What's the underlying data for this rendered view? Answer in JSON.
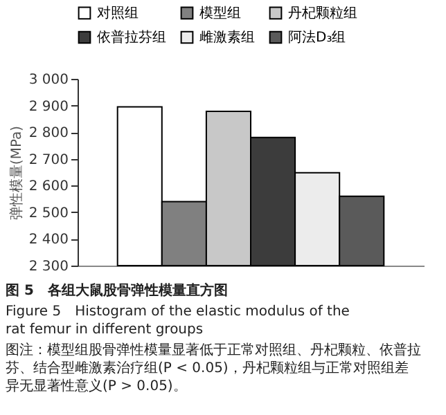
{
  "chart_data": {
    "type": "bar",
    "title": "图 5　各组大鼠股骨弹性模量直方图",
    "subtitle": "Figure 5　Histogram of the elastic modulus of the rat femur in different groups",
    "annotations": [
      "图注：模型组股骨弹性模量显著低于正常对照组、丹杞颗粒、依普拉芬、结合型雌激素治疗组(P < 0.05)，丹杞颗粒组与正常对照组差异无显著性意义(P > 0.05)。"
    ],
    "ylabel": "弹性模量(MPa)",
    "categories": [
      null
    ],
    "series": [
      {
        "name": "对照组",
        "color": "#ffffff",
        "values": [
          2895
        ]
      },
      {
        "name": "模型组",
        "color": "#808080",
        "values": [
          2540
        ]
      },
      {
        "name": "丹杞颗粒组",
        "color": "#c8c8c8",
        "values": [
          2878
        ]
      },
      {
        "name": "依普拉芬组",
        "color": "#3c3c3c",
        "values": [
          2780
        ]
      },
      {
        "name": "雌激素组",
        "color": "#ececec",
        "values": [
          2648
        ]
      },
      {
        "name": "阿法D₃组",
        "color": "#5a5a5a",
        "values": [
          2560
        ]
      }
    ],
    "ylim": [
      2300,
      3000
    ],
    "yticks": [
      {
        "value": 2300,
        "label": "2 300"
      },
      {
        "value": 2400,
        "label": "2 400"
      },
      {
        "value": 2500,
        "label": "2 500"
      },
      {
        "value": 2600,
        "label": "2 600"
      },
      {
        "value": 2700,
        "label": "2 700"
      },
      {
        "value": 2800,
        "label": "2 800"
      },
      {
        "value": 2900,
        "label": "2 900"
      },
      {
        "value": 3000,
        "label": "3 000"
      }
    ],
    "grid": false,
    "legend": "top"
  }
}
